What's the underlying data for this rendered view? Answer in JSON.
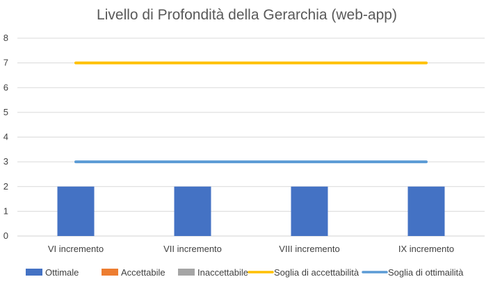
{
  "chart_data": {
    "type": "bar",
    "title": "Livello di Profondità della Gerarchia (web-app)",
    "xlabel": "",
    "ylabel": "",
    "categories": [
      "VI incremento",
      "VII incremento",
      "VIII incremento",
      "IX incremento"
    ],
    "ylim": [
      0,
      8
    ],
    "yticks": [
      0,
      1,
      2,
      3,
      4,
      5,
      6,
      7,
      8
    ],
    "grid": true,
    "legend_position": "bottom",
    "series": [
      {
        "name": "Ottimale",
        "kind": "bar",
        "color": "#4472C4",
        "values": [
          2,
          2,
          2,
          2
        ]
      },
      {
        "name": "Accettabile",
        "kind": "bar",
        "color": "#ED7D31",
        "values": [
          0,
          0,
          0,
          0
        ]
      },
      {
        "name": "Inaccettabile",
        "kind": "bar",
        "color": "#A5A5A5",
        "values": [
          0,
          0,
          0,
          0
        ]
      },
      {
        "name": "Soglia di accettabilità",
        "kind": "line",
        "color": "#FFC000",
        "values": [
          7,
          7,
          7,
          7
        ]
      },
      {
        "name": "Soglia di ottimailità",
        "kind": "line",
        "color": "#5B9BD5",
        "values": [
          3,
          3,
          3,
          3
        ]
      }
    ]
  }
}
